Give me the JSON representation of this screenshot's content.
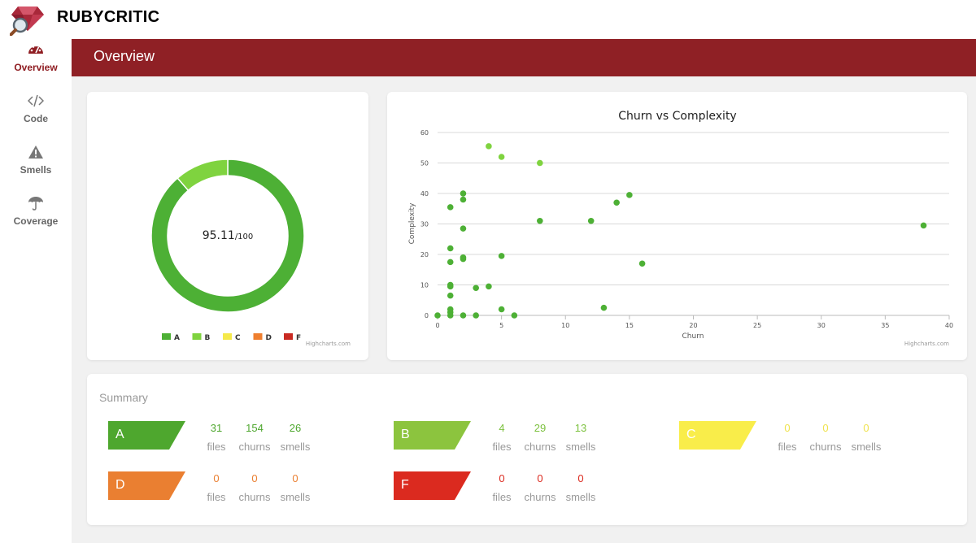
{
  "app": {
    "brand": "RUBYCRITIC"
  },
  "sidebar": {
    "items": [
      {
        "label": "Overview",
        "icon": "dashboard-icon",
        "active": true
      },
      {
        "label": "Code",
        "icon": "code-icon",
        "active": false
      },
      {
        "label": "Smells",
        "icon": "warning-icon",
        "active": false
      },
      {
        "label": "Coverage",
        "icon": "umbrella-icon",
        "active": false
      }
    ]
  },
  "header": {
    "title": "Overview"
  },
  "score": {
    "value": "95.11",
    "max": "/100"
  },
  "donut": {
    "type": "pie",
    "slices": [
      {
        "name": "A",
        "value": 88.6,
        "color": "#4db035"
      },
      {
        "name": "B",
        "value": 11.4,
        "color": "#7fd33f"
      },
      {
        "name": "C",
        "value": 0,
        "color": "#f5e94a"
      },
      {
        "name": "D",
        "value": 0,
        "color": "#ef7f2f"
      },
      {
        "name": "F",
        "value": 0,
        "color": "#c92a22"
      }
    ],
    "credit": "Highcharts.com"
  },
  "chart_data": {
    "type": "scatter",
    "title": "Churn vs Complexity",
    "xlabel": "Churn",
    "ylabel": "Complexity",
    "xlim": [
      0,
      40
    ],
    "ylim": [
      0,
      60
    ],
    "xticks": [
      0,
      5,
      10,
      15,
      20,
      25,
      30,
      35,
      40
    ],
    "yticks": [
      0,
      10,
      20,
      30,
      40,
      50,
      60
    ],
    "credit": "Highcharts.com",
    "series": [
      {
        "name": "A",
        "color": "#4db035",
        "points": [
          [
            0,
            0
          ],
          [
            1,
            0
          ],
          [
            1,
            1
          ],
          [
            1,
            2
          ],
          [
            2,
            0
          ],
          [
            3,
            0
          ],
          [
            5,
            2
          ],
          [
            6,
            0
          ],
          [
            13,
            2.5
          ],
          [
            1,
            6.5
          ],
          [
            1,
            9.5
          ],
          [
            1,
            10
          ],
          [
            3,
            9
          ],
          [
            4,
            9.5
          ],
          [
            1,
            17.5
          ],
          [
            2,
            18.5
          ],
          [
            2,
            19
          ],
          [
            5,
            19.5
          ],
          [
            16,
            17
          ],
          [
            1,
            22
          ],
          [
            2,
            28.5
          ],
          [
            8,
            31
          ],
          [
            12,
            31
          ],
          [
            14,
            37
          ],
          [
            15,
            39.5
          ],
          [
            1,
            35.5
          ],
          [
            2,
            38
          ],
          [
            2,
            40
          ],
          [
            38,
            29.5
          ]
        ]
      },
      {
        "name": "B",
        "color": "#7fd33f",
        "points": [
          [
            4,
            55.5
          ],
          [
            5,
            52
          ],
          [
            8,
            50
          ]
        ]
      }
    ]
  },
  "summary": {
    "title": "Summary",
    "captions": {
      "files": "files",
      "churns": "churns",
      "smells": "smells"
    },
    "grades": [
      {
        "grade": "A",
        "color": "#4ea72e",
        "text": "#4ea72e",
        "files": "31",
        "churns": "154",
        "smells": "26"
      },
      {
        "grade": "B",
        "color": "#8cc43e",
        "text": "#7cc13e",
        "files": "4",
        "churns": "29",
        "smells": "13"
      },
      {
        "grade": "C",
        "color": "#f9ed4a",
        "text": "#efe24a",
        "files": "0",
        "churns": "0",
        "smells": "0"
      },
      {
        "grade": "D",
        "color": "#ea7f31",
        "text": "#ea7f31",
        "files": "0",
        "churns": "0",
        "smells": "0"
      },
      {
        "grade": "F",
        "color": "#db2a1f",
        "text": "#db2a1f",
        "files": "0",
        "churns": "0",
        "smells": "0"
      }
    ]
  }
}
